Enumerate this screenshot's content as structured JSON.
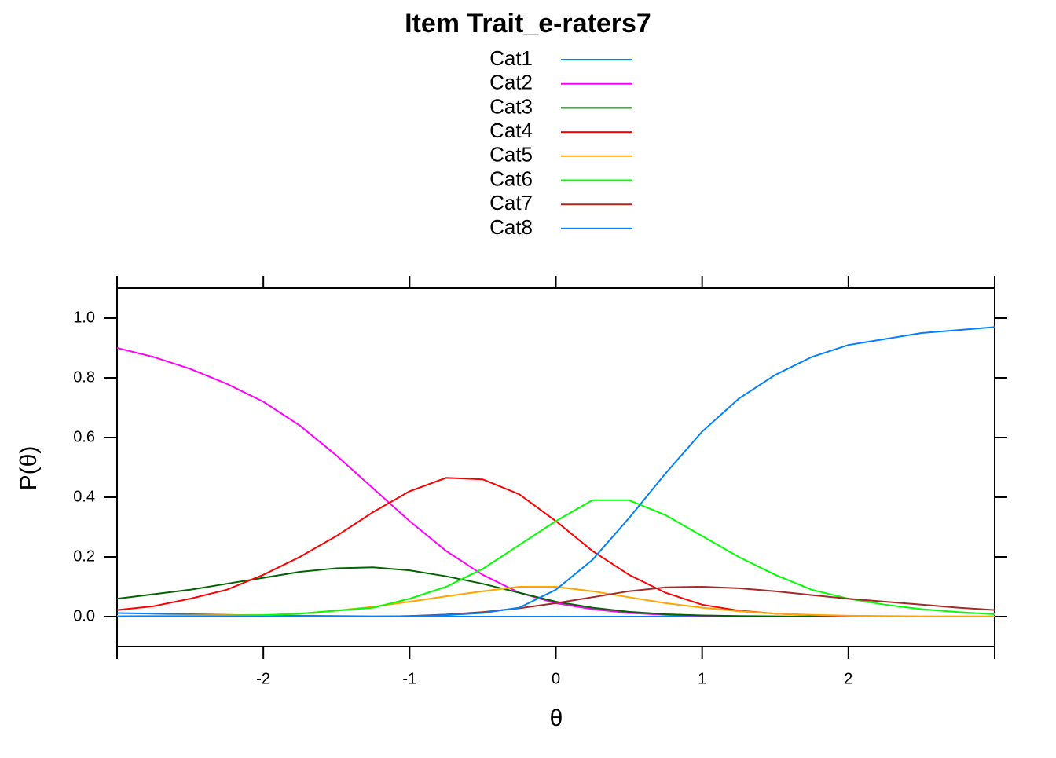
{
  "chart_data": {
    "type": "line",
    "title": "Item Trait_e-raters7",
    "xlabel": "θ",
    "ylabel": "P(θ)",
    "x": [
      -3,
      -2.75,
      -2.5,
      -2.25,
      -2,
      -1.75,
      -1.5,
      -1.25,
      -1,
      -0.75,
      -0.5,
      -0.25,
      0,
      0.25,
      0.5,
      0.75,
      1,
      1.25,
      1.5,
      1.75,
      2,
      2.25,
      2.5,
      2.75,
      3
    ],
    "xlim": [
      -3,
      3
    ],
    "xticks": [
      -2,
      -1,
      0,
      1,
      2
    ],
    "ylim": [
      -0.1,
      1.1
    ],
    "yticks": [
      {
        "value": 0,
        "label": "0.0"
      },
      {
        "value": 0.2,
        "label": "0.2"
      },
      {
        "value": 0.4,
        "label": "0.4"
      },
      {
        "value": 0.6,
        "label": "0.6"
      },
      {
        "value": 0.8,
        "label": "0.8"
      },
      {
        "value": 1,
        "label": "1.0"
      }
    ],
    "series": [
      {
        "name": "Cat1",
        "color": "#0080ff",
        "values": [
          0.012,
          0.01,
          0.008,
          0.006,
          0.004,
          0.003,
          0.002,
          0.001,
          0,
          0,
          0,
          0,
          0,
          0,
          0,
          0,
          0,
          0,
          0,
          0,
          0,
          0,
          0,
          0,
          0
        ]
      },
      {
        "name": "Cat2",
        "color": "#ff00ff",
        "values": [
          0.9,
          0.87,
          0.83,
          0.78,
          0.72,
          0.64,
          0.54,
          0.43,
          0.32,
          0.22,
          0.14,
          0.08,
          0.045,
          0.025,
          0.012,
          0.006,
          0.003,
          0.001,
          0,
          0,
          0,
          0,
          0,
          0,
          0
        ]
      },
      {
        "name": "Cat3",
        "color": "#006400",
        "values": [
          0.06,
          0.075,
          0.09,
          0.11,
          0.13,
          0.15,
          0.162,
          0.165,
          0.155,
          0.135,
          0.11,
          0.08,
          0.05,
          0.03,
          0.016,
          0.008,
          0.004,
          0.002,
          0.001,
          0,
          0,
          0,
          0,
          0,
          0
        ]
      },
      {
        "name": "Cat4",
        "color": "#ff0000",
        "values": [
          0.022,
          0.035,
          0.06,
          0.09,
          0.14,
          0.2,
          0.27,
          0.35,
          0.42,
          0.465,
          0.46,
          0.41,
          0.32,
          0.22,
          0.14,
          0.08,
          0.04,
          0.02,
          0.01,
          0.005,
          0.002,
          0.001,
          0,
          0,
          0
        ]
      },
      {
        "name": "Cat5",
        "color": "#ffa500",
        "values": [
          0.002,
          0.003,
          0.004,
          0.005,
          0.005,
          0.01,
          0.02,
          0.033,
          0.05,
          0.068,
          0.085,
          0.1,
          0.1,
          0.085,
          0.065,
          0.045,
          0.03,
          0.018,
          0.01,
          0.006,
          0.003,
          0.002,
          0.001,
          0.001,
          0.001
        ]
      },
      {
        "name": "Cat6",
        "color": "#00ff00",
        "values": [
          0,
          0.001,
          0.002,
          0.003,
          0.005,
          0.01,
          0.02,
          0.03,
          0.06,
          0.1,
          0.16,
          0.24,
          0.32,
          0.39,
          0.39,
          0.34,
          0.27,
          0.2,
          0.14,
          0.09,
          0.06,
          0.04,
          0.025,
          0.015,
          0.008
        ]
      },
      {
        "name": "Cat7",
        "color": "#a52a2a",
        "values": [
          0,
          0,
          0,
          0,
          0,
          0,
          0,
          0,
          0.002,
          0.007,
          0.015,
          0.028,
          0.045,
          0.065,
          0.085,
          0.098,
          0.1,
          0.095,
          0.085,
          0.072,
          0.06,
          0.05,
          0.04,
          0.03,
          0.022
        ]
      },
      {
        "name": "Cat8",
        "color": "#0080ff",
        "values": [
          0,
          0,
          0,
          0,
          0,
          0,
          0,
          0,
          0.002,
          0.005,
          0.012,
          0.03,
          0.09,
          0.19,
          0.33,
          0.48,
          0.62,
          0.73,
          0.81,
          0.87,
          0.91,
          0.93,
          0.95,
          0.96,
          0.97
        ]
      }
    ]
  }
}
